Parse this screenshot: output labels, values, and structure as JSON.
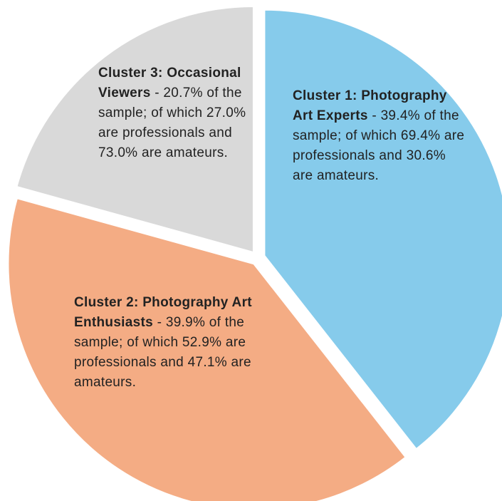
{
  "chart_data": {
    "type": "pie",
    "categories": [
      "Cluster 1: Photography Art Experts",
      "Cluster 2: Photography Art Enthusiasts",
      "Cluster 3: Occasional Viewers"
    ],
    "values": [
      39.4,
      39.9,
      20.7
    ],
    "value_labels": [
      "39.4%",
      "39.9%",
      "20.7%"
    ],
    "label_separator": "-",
    "notes": [
      "of the sample; of which 69.4% are professionals and 30.6% are amateurs.",
      "of the sample; of which 52.9% are professionals and 47.1% are amateurs.",
      "of the sample; of which 27.0% are professionals and 73.0% are amateurs."
    ],
    "colors": [
      "#86cbeb",
      "#f4ac84",
      "#d9d9d9"
    ]
  }
}
